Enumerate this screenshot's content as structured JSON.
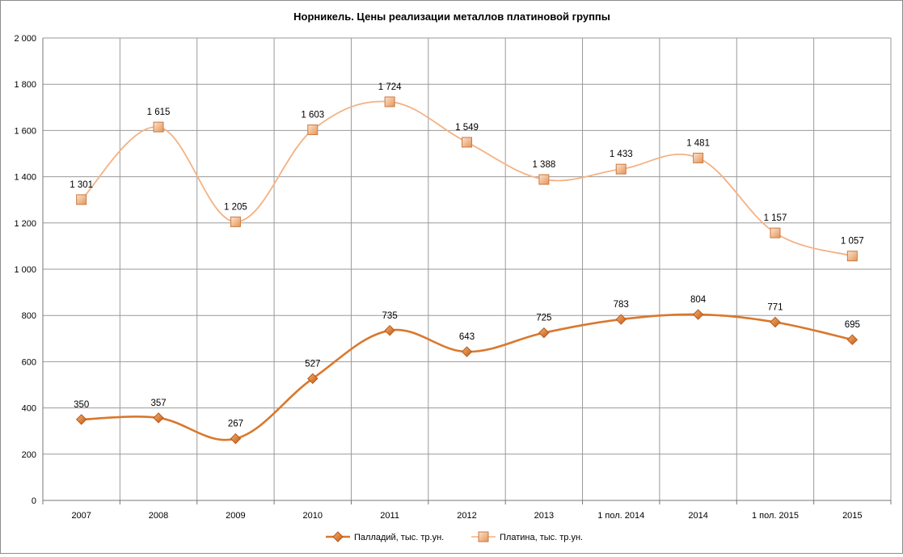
{
  "chart_data": {
    "type": "line",
    "title": "Норникель. Цены реализации металлов платиновой группы",
    "xlabel": "",
    "ylabel": "",
    "categories": [
      "2007",
      "2008",
      "2009",
      "2010",
      "2011",
      "2012",
      "2013",
      "1 пол. 2014",
      "2014",
      "1 пол. 2015",
      "2015"
    ],
    "ylim": [
      0,
      2000
    ],
    "yticks": [
      0,
      200,
      400,
      600,
      800,
      1000,
      1200,
      1400,
      1600,
      1800,
      2000
    ],
    "ytick_labels": [
      "0",
      "200",
      "400",
      "600",
      "800",
      "1 000",
      "1 200",
      "1 400",
      "1 600",
      "1 800",
      "2 000"
    ],
    "grid": true,
    "smooth": true,
    "legend_position": "bottom",
    "series": [
      {
        "name": "Палладий, тыс. тр.ун.",
        "values": [
          350,
          357,
          267,
          527,
          735,
          643,
          725,
          783,
          804,
          771,
          695
        ],
        "labels": [
          "350",
          "357",
          "267",
          "527",
          "735",
          "643",
          "725",
          "783",
          "804",
          "771",
          "695"
        ],
        "color": "#d9782d",
        "marker": "diamond"
      },
      {
        "name": "Платина, тыс. тр.ун.",
        "values": [
          1301,
          1615,
          1205,
          1603,
          1724,
          1549,
          1388,
          1433,
          1481,
          1157,
          1057
        ],
        "labels": [
          "1 301",
          "1 615",
          "1 205",
          "1 603",
          "1 724",
          "1 549",
          "1 388",
          "1 433",
          "1 481",
          "1 157",
          "1 057"
        ],
        "color": "#f4b183",
        "marker": "square"
      }
    ]
  }
}
